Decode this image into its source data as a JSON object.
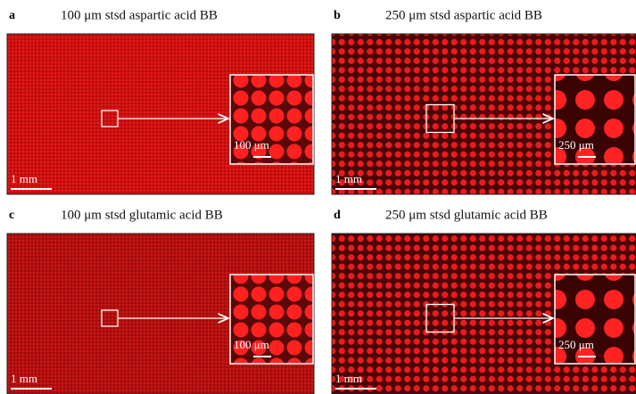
{
  "panels": [
    {
      "letter": "a",
      "title": "100 μm stsd aspartic acid BB",
      "scale_bar": "1 mm",
      "inset_scale": "100 μm"
    },
    {
      "letter": "b",
      "title": "250 μm stsd aspartic acid BB",
      "scale_bar": "1 mm",
      "inset_scale": "250 μm"
    },
    {
      "letter": "c",
      "title": "100 μm stsd glutamic acid BB",
      "scale_bar": "1 mm",
      "inset_scale": "100 μm"
    },
    {
      "letter": "d",
      "title": "250 μm stsd glutamic acid BB",
      "scale_bar": "1 mm",
      "inset_scale": "250 μm"
    }
  ]
}
